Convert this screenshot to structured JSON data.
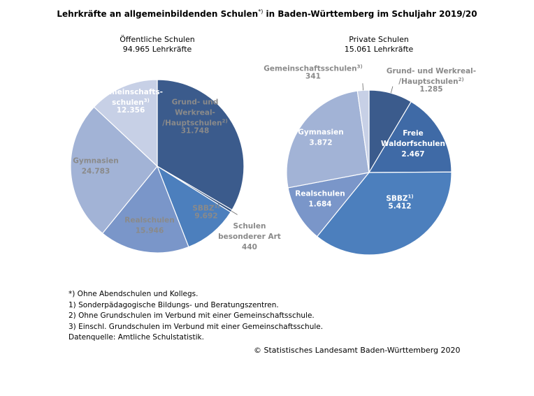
{
  "title": "Lehrkräfte an allgemeinbildenden Schulen",
  "title_mark": "*)",
  "title_rest": " in Baden-Württemberg im Schuljahr 2019/20",
  "chart_data": [
    {
      "type": "pie",
      "title": "Öffentliche Schulen",
      "subtitle": "94.965 Lehrkräfte",
      "total": 94965,
      "slices": [
        {
          "label": [
            "Grund- und",
            "Werkreal-",
            "/Hauptschulen"
          ],
          "sup": "2)",
          "value": 31748,
          "display": "31.748",
          "color": "#3b5b8c",
          "label_color": "#8a8a8a",
          "outside": false
        },
        {
          "label": [
            "Schulen",
            "besonderer Art"
          ],
          "sup": "",
          "value": 440,
          "display": "440",
          "color": "#314f7e",
          "label_color": "#8a8a8a",
          "outside": true
        },
        {
          "label": [
            "SBBZ"
          ],
          "sup": "1)",
          "value": 9692,
          "display": "9.692",
          "color": "#4c7fbd",
          "label_color": "#8a8a8a",
          "outside": false
        },
        {
          "label": [
            "Realschulen"
          ],
          "sup": "",
          "value": 15946,
          "display": "15.946",
          "color": "#7a96c9",
          "label_color": "#8a8a8a",
          "outside": false
        },
        {
          "label": [
            "Gymnasien"
          ],
          "sup": "",
          "value": 24783,
          "display": "24.783",
          "color": "#a2b3d6",
          "label_color": "#8a8a8a",
          "outside": false
        },
        {
          "label": [
            "Gemeinschafts-",
            "schulen"
          ],
          "sup": "3)",
          "value": 12356,
          "display": "12.356",
          "color": "#c7d0e6",
          "label_color": "#ffffff",
          "outside": false
        }
      ]
    },
    {
      "type": "pie",
      "title": "Private Schulen",
      "subtitle": "15.061 Lehrkräfte",
      "total": 15061,
      "slices": [
        {
          "label": [
            "Grund- und Werkreal-",
            "/Hauptschulen"
          ],
          "sup": "2)",
          "value": 1285,
          "display": "1.285",
          "color": "#3b5b8c",
          "label_color": "#8a8a8a",
          "outside": true
        },
        {
          "label": [
            "Freie",
            "Waldorfschulen"
          ],
          "sup": "",
          "value": 2467,
          "display": "2.467",
          "color": "#3f6aa6",
          "label_color": "#ffffff",
          "outside": false
        },
        {
          "label": [
            "SBBZ"
          ],
          "sup": "1)",
          "value": 5412,
          "display": "5.412",
          "color": "#4c7fbd",
          "label_color": "#ffffff",
          "outside": false
        },
        {
          "label": [
            "Realschulen"
          ],
          "sup": "",
          "value": 1684,
          "display": "1.684",
          "color": "#7a96c9",
          "label_color": "#ffffff",
          "outside": false
        },
        {
          "label": [
            "Gymnasien"
          ],
          "sup": "",
          "value": 3872,
          "display": "3.872",
          "color": "#a2b3d6",
          "label_color": "#ffffff",
          "outside": false
        },
        {
          "label": [
            "Gemeinschaftsschulen"
          ],
          "sup": "3)",
          "value": 341,
          "display": "341",
          "color": "#c7d0e6",
          "label_color": "#8a8a8a",
          "outside": true
        }
      ]
    }
  ],
  "notes": [
    "*) Ohne Abendschulen und Kollegs.",
    "1) Sonderpädagogische Bildungs- und Beratungszentren.",
    "2) Ohne Grundschulen im Verbund mit einer Gemeinschaftsschule.",
    "3) Einschl. Grundschulen im Verbund mit einer Gemeinschaftsschule.",
    "Datenquelle: Amtliche Schulstatistik."
  ],
  "copyright": "© Statistisches Landesamt Baden-Württemberg 2020"
}
